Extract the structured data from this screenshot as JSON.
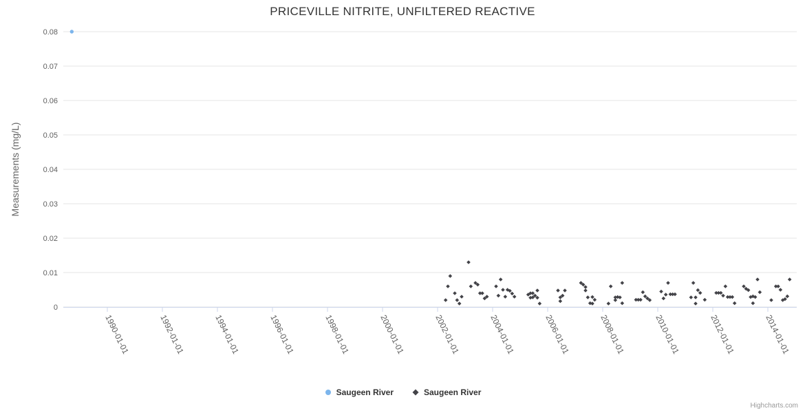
{
  "credits": "Highcharts.com",
  "chart_data": {
    "type": "scatter",
    "title": "PRICEVILLE NITRITE, UNFILTERED REACTIVE",
    "xlabel": "",
    "ylabel": "Measurements (mg/L)",
    "grid": "horizontal-only",
    "legend_position": "bottom-center",
    "x_range": [
      1988.4,
      2015.05
    ],
    "y_range": [
      0,
      0.08
    ],
    "y_ticks": [
      {
        "value": 0,
        "label": "0"
      },
      {
        "value": 0.01,
        "label": "0.01"
      },
      {
        "value": 0.02,
        "label": "0.02"
      },
      {
        "value": 0.03,
        "label": "0.03"
      },
      {
        "value": 0.04,
        "label": "0.04"
      },
      {
        "value": 0.05,
        "label": "0.05"
      },
      {
        "value": 0.06,
        "label": "0.06"
      },
      {
        "value": 0.07,
        "label": "0.07"
      },
      {
        "value": 0.08,
        "label": "0.08"
      }
    ],
    "x_ticks": [
      {
        "year": 1990,
        "label": "1990-01-01"
      },
      {
        "year": 1992,
        "label": "1992-01-01"
      },
      {
        "year": 1994,
        "label": "1994-01-01"
      },
      {
        "year": 1996,
        "label": "1996-01-01"
      },
      {
        "year": 1998,
        "label": "1998-01-01"
      },
      {
        "year": 2000,
        "label": "2000-01-01"
      },
      {
        "year": 2002,
        "label": "2002-01-01"
      },
      {
        "year": 2004,
        "label": "2004-01-01"
      },
      {
        "year": 2006,
        "label": "2006-01-01"
      },
      {
        "year": 2008,
        "label": "2008-01-01"
      },
      {
        "year": 2010,
        "label": "2010-01-01"
      },
      {
        "year": 2012,
        "label": "2012-01-01"
      },
      {
        "year": 2014,
        "label": "2014-01-01"
      }
    ],
    "series": [
      {
        "name": "Saugeen River",
        "marker": "circle",
        "color": "#7cb5ec",
        "points": [
          [
            "1988-09",
            0.08
          ]
        ]
      },
      {
        "name": "Saugeen River",
        "marker": "diamond",
        "color": "#434348",
        "points": [
          [
            "2002-04",
            0.002
          ],
          [
            "2002-05",
            0.006
          ],
          [
            "2002-06",
            0.009
          ],
          [
            "2002-08",
            0.004
          ],
          [
            "2002-09",
            0.002
          ],
          [
            "2002-10",
            0.001
          ],
          [
            "2002-11",
            0.003
          ],
          [
            "2003-02",
            0.013
          ],
          [
            "2003-03",
            0.006
          ],
          [
            "2003-05",
            0.007
          ],
          [
            "2003-06",
            0.0065
          ],
          [
            "2003-07",
            0.004
          ],
          [
            "2003-08",
            0.004
          ],
          [
            "2003-09",
            0.0025
          ],
          [
            "2003-10",
            0.003
          ],
          [
            "2004-02",
            0.006
          ],
          [
            "2004-03",
            0.0033
          ],
          [
            "2004-04",
            0.008
          ],
          [
            "2004-05",
            0.005
          ],
          [
            "2004-06",
            0.003
          ],
          [
            "2004-07",
            0.005
          ],
          [
            "2004-08",
            0.0047
          ],
          [
            "2004-09",
            0.0039
          ],
          [
            "2004-10",
            0.003
          ],
          [
            "2005-04",
            0.0036
          ],
          [
            "2005-05",
            0.004
          ],
          [
            "2005-05",
            0.0027
          ],
          [
            "2005-06",
            0.004
          ],
          [
            "2005-06",
            0.0028
          ],
          [
            "2005-07",
            0.0033
          ],
          [
            "2005-08",
            0.0048
          ],
          [
            "2005-08",
            0.0027
          ],
          [
            "2005-09",
            0.001
          ],
          [
            "2006-05",
            0.0048
          ],
          [
            "2006-06",
            0.0028
          ],
          [
            "2006-06",
            0.0017
          ],
          [
            "2006-07",
            0.0033
          ],
          [
            "2006-08",
            0.0048
          ],
          [
            "2007-03",
            0.007
          ],
          [
            "2007-04",
            0.0065
          ],
          [
            "2007-05",
            0.0058
          ],
          [
            "2007-05",
            0.0048
          ],
          [
            "2007-06",
            0.0028
          ],
          [
            "2007-07",
            0.0011
          ],
          [
            "2007-08",
            0.0029
          ],
          [
            "2007-08",
            0.001
          ],
          [
            "2007-09",
            0.0021
          ],
          [
            "2008-03",
            0.001
          ],
          [
            "2008-04",
            0.006
          ],
          [
            "2008-06",
            0.0028
          ],
          [
            "2008-06",
            0.002
          ],
          [
            "2008-07",
            0.0029
          ],
          [
            "2008-08",
            0.0028
          ],
          [
            "2008-09",
            0.007
          ],
          [
            "2008-09",
            0.0011
          ],
          [
            "2009-03",
            0.0021
          ],
          [
            "2009-04",
            0.0021
          ],
          [
            "2009-05",
            0.0021
          ],
          [
            "2009-06",
            0.0043
          ],
          [
            "2009-07",
            0.0031
          ],
          [
            "2009-08",
            0.0025
          ],
          [
            "2009-09",
            0.002
          ],
          [
            "2010-02",
            0.0045
          ],
          [
            "2010-03",
            0.0025
          ],
          [
            "2010-04",
            0.0036
          ],
          [
            "2010-05",
            0.007
          ],
          [
            "2010-06",
            0.0037
          ],
          [
            "2010-07",
            0.0037
          ],
          [
            "2010-08",
            0.0037
          ],
          [
            "2011-03",
            0.0028
          ],
          [
            "2011-04",
            0.007
          ],
          [
            "2011-05",
            0.0028
          ],
          [
            "2011-05",
            0.001
          ],
          [
            "2011-06",
            0.0049
          ],
          [
            "2011-07",
            0.0041
          ],
          [
            "2011-09",
            0.0021
          ],
          [
            "2012-02",
            0.0041
          ],
          [
            "2012-03",
            0.0041
          ],
          [
            "2012-04",
            0.0041
          ],
          [
            "2012-05",
            0.0033
          ],
          [
            "2012-06",
            0.006
          ],
          [
            "2012-07",
            0.0029
          ],
          [
            "2012-08",
            0.0029
          ],
          [
            "2012-09",
            0.0029
          ],
          [
            "2012-10",
            0.0011
          ],
          [
            "2013-02",
            0.006
          ],
          [
            "2013-03",
            0.0053
          ],
          [
            "2013-04",
            0.0049
          ],
          [
            "2013-05",
            0.0029
          ],
          [
            "2013-06",
            0.0031
          ],
          [
            "2013-06",
            0.0011
          ],
          [
            "2013-07",
            0.0029
          ],
          [
            "2013-08",
            0.008
          ],
          [
            "2013-09",
            0.0043
          ],
          [
            "2014-02",
            0.002
          ],
          [
            "2014-04",
            0.006
          ],
          [
            "2014-05",
            0.006
          ],
          [
            "2014-06",
            0.005
          ],
          [
            "2014-07",
            0.002
          ],
          [
            "2014-08",
            0.0023
          ],
          [
            "2014-09",
            0.0031
          ],
          [
            "2014-10",
            0.008
          ]
        ]
      }
    ]
  }
}
